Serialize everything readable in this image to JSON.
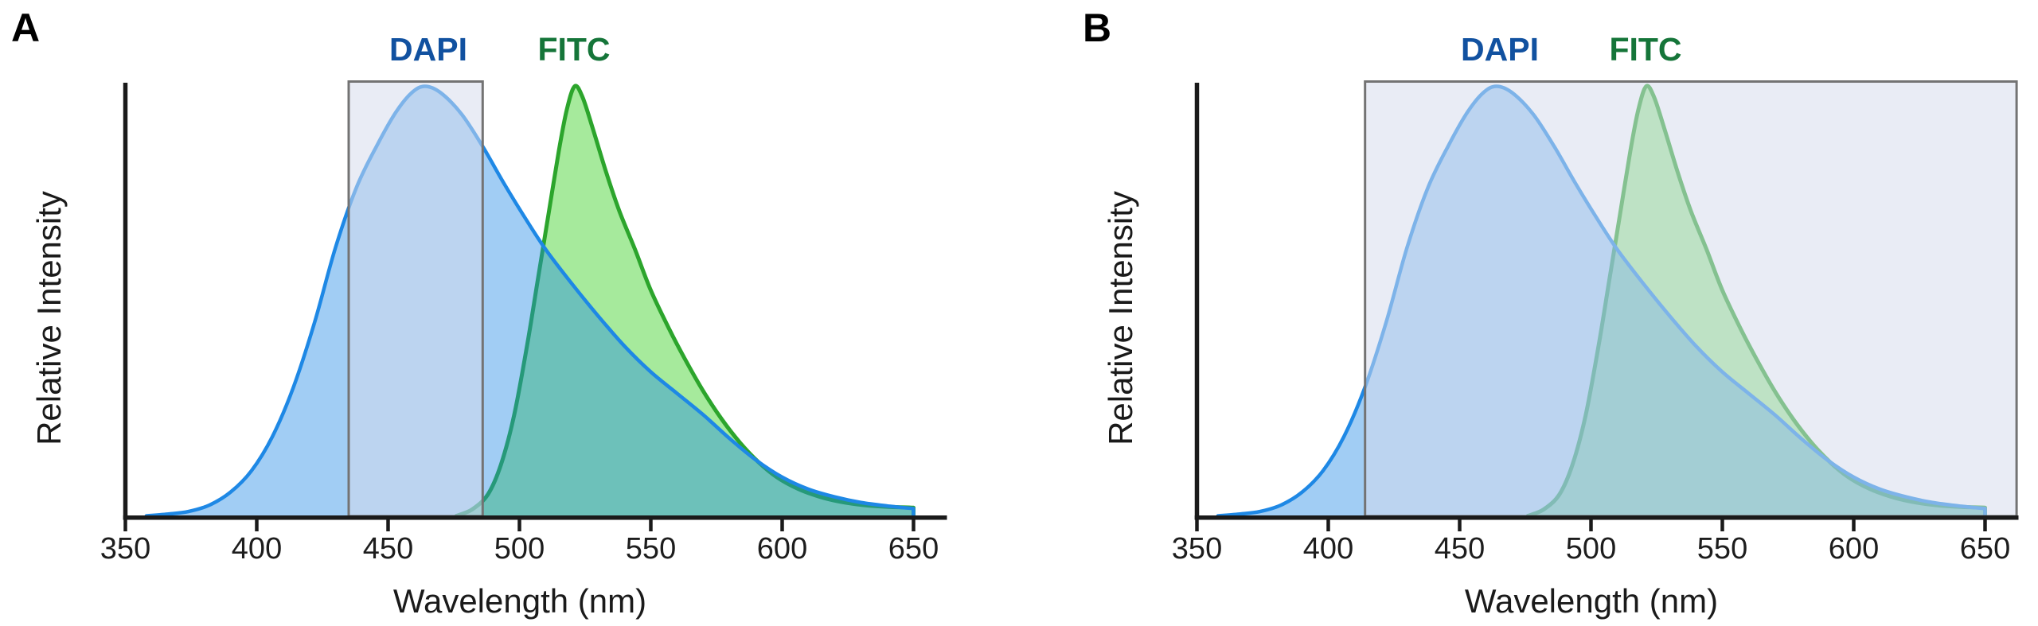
{
  "panels": [
    {
      "panel_label": "A",
      "dapi_label": "DAPI",
      "fitc_label": "FITC",
      "xlabel": "Wavelength (nm)",
      "ylabel": "Relative Intensity"
    },
    {
      "panel_label": "B",
      "dapi_label": "DAPI",
      "fitc_label": "FITC",
      "xlabel": "Wavelength (nm)",
      "ylabel": "Relative Intensity"
    }
  ],
  "colors": {
    "dapi_stroke": "#1E88E5",
    "dapi_fill": "rgba(30,136,229,0.42)",
    "fitc_stroke": "#2CA52C",
    "fitc_fill": "rgba(60,210,40,0.46)",
    "filter_band_fill": "rgba(213,219,235,0.52)",
    "filter_band_border": "#737373",
    "axis": "#1A1A1A",
    "dapi_label_text": "#1151A0",
    "fitc_label_text": "#157539",
    "panel_letter_text": "#000000"
  },
  "chart_data": [
    {
      "type": "area",
      "panel": "A",
      "xlabel": "Wavelength (nm)",
      "ylabel": "Relative Intensity",
      "x_ticks": [
        350,
        400,
        450,
        500,
        550,
        600,
        650
      ],
      "xlim": [
        350,
        663
      ],
      "ylim": [
        0,
        1.06
      ],
      "grid": false,
      "series_label_position": "above-plot",
      "filter_band_nm": [
        435,
        486
      ],
      "series": [
        {
          "name": "DAPI",
          "peak_nm": 464,
          "points": [
            [
              358,
              0
            ],
            [
              366,
              0.004
            ],
            [
              374,
              0.01
            ],
            [
              382,
              0.025
            ],
            [
              390,
              0.055
            ],
            [
              398,
              0.105
            ],
            [
              406,
              0.185
            ],
            [
              414,
              0.3
            ],
            [
              422,
              0.45
            ],
            [
              430,
              0.625
            ],
            [
              438,
              0.765
            ],
            [
              446,
              0.865
            ],
            [
              453,
              0.94
            ],
            [
              459,
              0.985
            ],
            [
              464,
              1.0
            ],
            [
              470,
              0.985
            ],
            [
              478,
              0.935
            ],
            [
              486,
              0.86
            ],
            [
              494,
              0.775
            ],
            [
              502,
              0.695
            ],
            [
              510,
              0.62
            ],
            [
              520,
              0.54
            ],
            [
              530,
              0.465
            ],
            [
              540,
              0.395
            ],
            [
              550,
              0.335
            ],
            [
              560,
              0.285
            ],
            [
              570,
              0.235
            ],
            [
              580,
              0.18
            ],
            [
              590,
              0.13
            ],
            [
              600,
              0.09
            ],
            [
              610,
              0.062
            ],
            [
              620,
              0.044
            ],
            [
              630,
              0.031
            ],
            [
              640,
              0.023
            ],
            [
              650,
              0.017
            ]
          ]
        },
        {
          "name": "FITC",
          "peak_nm": 521,
          "points": [
            [
              476,
              0
            ],
            [
              482,
              0.015
            ],
            [
              488,
              0.05
            ],
            [
              493,
              0.12
            ],
            [
              498,
              0.235
            ],
            [
              503,
              0.4
            ],
            [
              507,
              0.55
            ],
            [
              511,
              0.7
            ],
            [
              515,
              0.85
            ],
            [
              518,
              0.945
            ],
            [
              521,
              1.0
            ],
            [
              524,
              0.975
            ],
            [
              528,
              0.9
            ],
            [
              533,
              0.8
            ],
            [
              538,
              0.71
            ],
            [
              544,
              0.62
            ],
            [
              550,
              0.525
            ],
            [
              557,
              0.435
            ],
            [
              563,
              0.365
            ],
            [
              570,
              0.29
            ],
            [
              577,
              0.225
            ],
            [
              584,
              0.17
            ],
            [
              591,
              0.125
            ],
            [
              598,
              0.09
            ],
            [
              606,
              0.063
            ],
            [
              614,
              0.045
            ],
            [
              622,
              0.033
            ],
            [
              631,
              0.025
            ],
            [
              640,
              0.021
            ],
            [
              650,
              0.019
            ]
          ]
        }
      ]
    },
    {
      "type": "area",
      "panel": "B",
      "xlabel": "Wavelength (nm)",
      "ylabel": "Relative Intensity",
      "x_ticks": [
        350,
        400,
        450,
        500,
        550,
        600,
        650
      ],
      "xlim": [
        350,
        663
      ],
      "ylim": [
        0,
        1.06
      ],
      "grid": false,
      "series_label_position": "above-plot",
      "filter_band_nm": [
        414,
        662
      ],
      "series": [
        {
          "name": "DAPI",
          "peak_nm": 464,
          "points": [
            [
              358,
              0
            ],
            [
              366,
              0.004
            ],
            [
              374,
              0.01
            ],
            [
              382,
              0.025
            ],
            [
              390,
              0.055
            ],
            [
              398,
              0.105
            ],
            [
              406,
              0.185
            ],
            [
              414,
              0.3
            ],
            [
              422,
              0.45
            ],
            [
              430,
              0.625
            ],
            [
              438,
              0.765
            ],
            [
              446,
              0.865
            ],
            [
              453,
              0.94
            ],
            [
              459,
              0.985
            ],
            [
              464,
              1.0
            ],
            [
              470,
              0.985
            ],
            [
              478,
              0.935
            ],
            [
              486,
              0.86
            ],
            [
              494,
              0.775
            ],
            [
              502,
              0.695
            ],
            [
              510,
              0.62
            ],
            [
              520,
              0.54
            ],
            [
              530,
              0.465
            ],
            [
              540,
              0.395
            ],
            [
              550,
              0.335
            ],
            [
              560,
              0.285
            ],
            [
              570,
              0.235
            ],
            [
              580,
              0.18
            ],
            [
              590,
              0.13
            ],
            [
              600,
              0.09
            ],
            [
              610,
              0.062
            ],
            [
              620,
              0.044
            ],
            [
              630,
              0.031
            ],
            [
              640,
              0.023
            ],
            [
              650,
              0.017
            ]
          ]
        },
        {
          "name": "FITC",
          "peak_nm": 521,
          "points": [
            [
              476,
              0
            ],
            [
              482,
              0.015
            ],
            [
              488,
              0.05
            ],
            [
              493,
              0.12
            ],
            [
              498,
              0.235
            ],
            [
              503,
              0.4
            ],
            [
              507,
              0.55
            ],
            [
              511,
              0.7
            ],
            [
              515,
              0.85
            ],
            [
              518,
              0.945
            ],
            [
              521,
              1.0
            ],
            [
              524,
              0.975
            ],
            [
              528,
              0.9
            ],
            [
              533,
              0.8
            ],
            [
              538,
              0.71
            ],
            [
              544,
              0.62
            ],
            [
              550,
              0.525
            ],
            [
              557,
              0.435
            ],
            [
              563,
              0.365
            ],
            [
              570,
              0.29
            ],
            [
              577,
              0.225
            ],
            [
              584,
              0.17
            ],
            [
              591,
              0.125
            ],
            [
              598,
              0.09
            ],
            [
              606,
              0.063
            ],
            [
              614,
              0.045
            ],
            [
              622,
              0.033
            ],
            [
              631,
              0.025
            ],
            [
              640,
              0.021
            ],
            [
              650,
              0.019
            ]
          ]
        }
      ]
    }
  ]
}
